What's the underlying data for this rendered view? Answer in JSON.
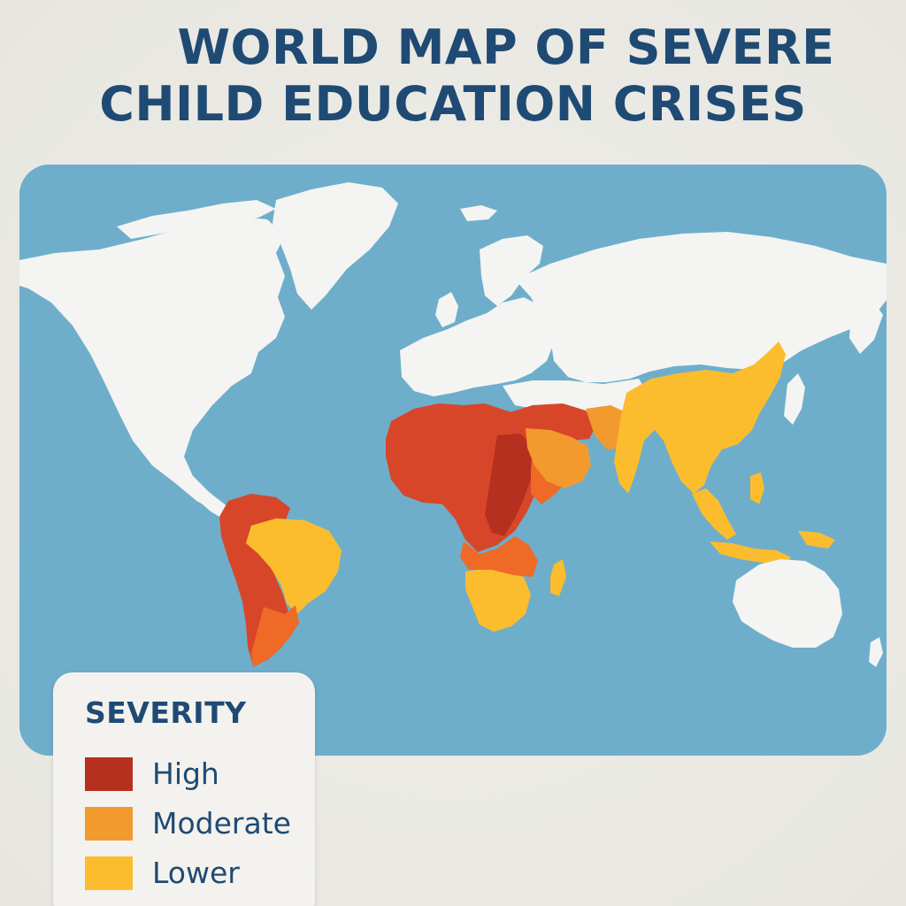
{
  "title": {
    "line1": "WORLD MAP OF SEVERE",
    "line2": "CHILD EDUCATION CRISES"
  },
  "colors": {
    "ocean": "#6eaecb",
    "land": "#f4f4f2",
    "high": "#b5301f",
    "high_alt": "#d8462a",
    "moderate": "#ee6a26",
    "moderate_alt": "#f39a2e",
    "lower": "#fbbd2d",
    "title_text": "#1f4a73"
  },
  "legend": {
    "title": "SEVERITY",
    "items": [
      {
        "label": "High",
        "color": "#b5301f"
      },
      {
        "label": "Moderate",
        "color": "#f39a2e"
      },
      {
        "label": "Lower",
        "color": "#fbbd2d"
      }
    ]
  },
  "regions": [
    {
      "name": "Sub-Saharan Africa",
      "severity": "High"
    },
    {
      "name": "Middle East",
      "severity": "High"
    },
    {
      "name": "Western South America",
      "severity": "High"
    },
    {
      "name": "Arabian Peninsula",
      "severity": "Moderate"
    },
    {
      "name": "Brazil",
      "severity": "Lower"
    },
    {
      "name": "Southern Africa",
      "severity": "Lower"
    },
    {
      "name": "South Asia",
      "severity": "Lower"
    },
    {
      "name": "China",
      "severity": "Lower"
    },
    {
      "name": "Southeast Asia",
      "severity": "Lower"
    }
  ]
}
